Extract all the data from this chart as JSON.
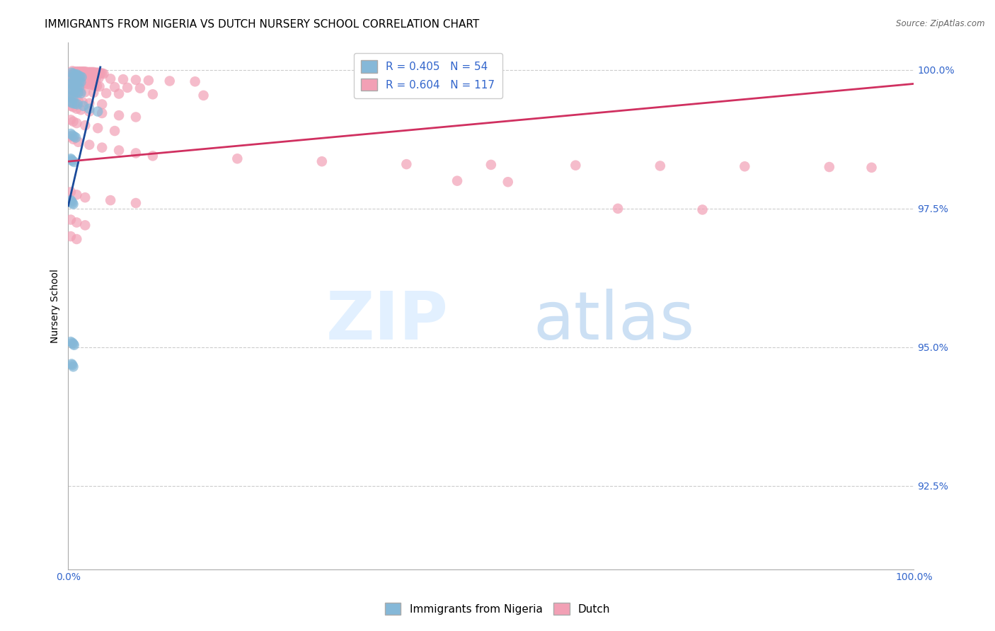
{
  "title": "IMMIGRANTS FROM NIGERIA VS DUTCH NURSERY SCHOOL CORRELATION CHART",
  "source": "Source: ZipAtlas.com",
  "ylabel": "Nursery School",
  "xlim": [
    0.0,
    1.0
  ],
  "ylim": [
    0.91,
    1.005
  ],
  "yticks": [
    0.925,
    0.95,
    0.975,
    1.0
  ],
  "ytick_labels": [
    "92.5%",
    "95.0%",
    "97.5%",
    "100.0%"
  ],
  "legend_r1": "R = 0.405",
  "legend_n1": "N = 54",
  "legend_r2": "R = 0.604",
  "legend_n2": "N = 117",
  "blue_color": "#85B8D8",
  "pink_color": "#F2A0B5",
  "blue_line_color": "#1A4A9A",
  "pink_line_color": "#D03060",
  "legend_text_color": "#3366CC",
  "blue_scatter": [
    [
      0.004,
      0.9995
    ],
    [
      0.006,
      0.9993
    ],
    [
      0.008,
      0.9992
    ],
    [
      0.01,
      0.9992
    ],
    [
      0.012,
      0.999
    ],
    [
      0.014,
      0.9988
    ],
    [
      0.016,
      0.9987
    ],
    [
      0.005,
      0.9985
    ],
    [
      0.007,
      0.9982
    ],
    [
      0.009,
      0.9982
    ],
    [
      0.011,
      0.9981
    ],
    [
      0.013,
      0.9979
    ],
    [
      0.015,
      0.9978
    ],
    [
      0.003,
      0.9975
    ],
    [
      0.005,
      0.9974
    ],
    [
      0.007,
      0.9973
    ],
    [
      0.009,
      0.9972
    ],
    [
      0.011,
      0.997
    ],
    [
      0.013,
      0.9969
    ],
    [
      0.003,
      0.9965
    ],
    [
      0.005,
      0.9963
    ],
    [
      0.007,
      0.9962
    ],
    [
      0.009,
      0.996
    ],
    [
      0.012,
      0.9959
    ],
    [
      0.015,
      0.9958
    ],
    [
      0.002,
      0.9952
    ],
    [
      0.004,
      0.995
    ],
    [
      0.006,
      0.9948
    ],
    [
      0.003,
      0.9942
    ],
    [
      0.005,
      0.994
    ],
    [
      0.008,
      0.9939
    ],
    [
      0.011,
      0.9938
    ],
    [
      0.018,
      0.9935
    ],
    [
      0.025,
      0.993
    ],
    [
      0.035,
      0.9925
    ],
    [
      0.003,
      0.9885
    ],
    [
      0.005,
      0.9882
    ],
    [
      0.007,
      0.988
    ],
    [
      0.009,
      0.9878
    ],
    [
      0.003,
      0.984
    ],
    [
      0.004,
      0.9838
    ],
    [
      0.005,
      0.9836
    ],
    [
      0.007,
      0.9834
    ],
    [
      0.003,
      0.9765
    ],
    [
      0.004,
      0.9763
    ],
    [
      0.005,
      0.976
    ],
    [
      0.006,
      0.9758
    ],
    [
      0.003,
      0.951
    ],
    [
      0.005,
      0.9508
    ],
    [
      0.006,
      0.9506
    ],
    [
      0.007,
      0.9504
    ],
    [
      0.004,
      0.947
    ],
    [
      0.005,
      0.9468
    ],
    [
      0.006,
      0.9465
    ]
  ],
  "pink_scatter": [
    [
      0.005,
      0.9998
    ],
    [
      0.008,
      0.9997
    ],
    [
      0.01,
      0.9997
    ],
    [
      0.012,
      0.9997
    ],
    [
      0.014,
      0.9997
    ],
    [
      0.016,
      0.9997
    ],
    [
      0.018,
      0.9997
    ],
    [
      0.02,
      0.9997
    ],
    [
      0.022,
      0.9996
    ],
    [
      0.024,
      0.9996
    ],
    [
      0.026,
      0.9996
    ],
    [
      0.028,
      0.9996
    ],
    [
      0.03,
      0.9996
    ],
    [
      0.032,
      0.9995
    ],
    [
      0.034,
      0.9995
    ],
    [
      0.036,
      0.9995
    ],
    [
      0.038,
      0.9994
    ],
    [
      0.04,
      0.9994
    ],
    [
      0.042,
      0.9993
    ],
    [
      0.004,
      0.999
    ],
    [
      0.006,
      0.999
    ],
    [
      0.008,
      0.999
    ],
    [
      0.01,
      0.9989
    ],
    [
      0.012,
      0.9989
    ],
    [
      0.015,
      0.9988
    ],
    [
      0.018,
      0.9988
    ],
    [
      0.021,
      0.9987
    ],
    [
      0.024,
      0.9987
    ],
    [
      0.027,
      0.9986
    ],
    [
      0.03,
      0.9986
    ],
    [
      0.033,
      0.9985
    ],
    [
      0.036,
      0.9985
    ],
    [
      0.05,
      0.9984
    ],
    [
      0.065,
      0.9983
    ],
    [
      0.08,
      0.9982
    ],
    [
      0.095,
      0.9981
    ],
    [
      0.12,
      0.998
    ],
    [
      0.15,
      0.9979
    ],
    [
      0.004,
      0.9978
    ],
    [
      0.007,
      0.9978
    ],
    [
      0.01,
      0.9977
    ],
    [
      0.013,
      0.9977
    ],
    [
      0.016,
      0.9976
    ],
    [
      0.019,
      0.9976
    ],
    [
      0.022,
      0.9975
    ],
    [
      0.025,
      0.9974
    ],
    [
      0.028,
      0.9973
    ],
    [
      0.031,
      0.9972
    ],
    [
      0.034,
      0.9971
    ],
    [
      0.037,
      0.997
    ],
    [
      0.055,
      0.9969
    ],
    [
      0.07,
      0.9968
    ],
    [
      0.085,
      0.9967
    ],
    [
      0.003,
      0.9965
    ],
    [
      0.006,
      0.9964
    ],
    [
      0.009,
      0.9963
    ],
    [
      0.012,
      0.9962
    ],
    [
      0.015,
      0.9961
    ],
    [
      0.02,
      0.996
    ],
    [
      0.03,
      0.9959
    ],
    [
      0.045,
      0.9958
    ],
    [
      0.06,
      0.9957
    ],
    [
      0.1,
      0.9956
    ],
    [
      0.16,
      0.9954
    ],
    [
      0.003,
      0.995
    ],
    [
      0.005,
      0.9948
    ],
    [
      0.008,
      0.9946
    ],
    [
      0.012,
      0.9944
    ],
    [
      0.017,
      0.9942
    ],
    [
      0.025,
      0.994
    ],
    [
      0.04,
      0.9938
    ],
    [
      0.003,
      0.9935
    ],
    [
      0.006,
      0.9933
    ],
    [
      0.01,
      0.993
    ],
    [
      0.015,
      0.9928
    ],
    [
      0.025,
      0.9925
    ],
    [
      0.04,
      0.9922
    ],
    [
      0.06,
      0.9918
    ],
    [
      0.08,
      0.9915
    ],
    [
      0.003,
      0.991
    ],
    [
      0.006,
      0.9907
    ],
    [
      0.01,
      0.9904
    ],
    [
      0.02,
      0.99
    ],
    [
      0.035,
      0.9895
    ],
    [
      0.055,
      0.989
    ],
    [
      0.003,
      0.988
    ],
    [
      0.006,
      0.9875
    ],
    [
      0.012,
      0.987
    ],
    [
      0.025,
      0.9865
    ],
    [
      0.04,
      0.986
    ],
    [
      0.06,
      0.9855
    ],
    [
      0.08,
      0.985
    ],
    [
      0.1,
      0.9845
    ],
    [
      0.2,
      0.984
    ],
    [
      0.3,
      0.9835
    ],
    [
      0.4,
      0.983
    ],
    [
      0.5,
      0.9829
    ],
    [
      0.6,
      0.9828
    ],
    [
      0.7,
      0.9827
    ],
    [
      0.8,
      0.9826
    ],
    [
      0.9,
      0.9825
    ],
    [
      0.95,
      0.9824
    ],
    [
      0.46,
      0.98
    ],
    [
      0.52,
      0.9798
    ],
    [
      0.003,
      0.978
    ],
    [
      0.01,
      0.9775
    ],
    [
      0.02,
      0.977
    ],
    [
      0.05,
      0.9765
    ],
    [
      0.08,
      0.976
    ],
    [
      0.65,
      0.975
    ],
    [
      0.75,
      0.9748
    ],
    [
      0.003,
      0.973
    ],
    [
      0.01,
      0.9725
    ],
    [
      0.02,
      0.972
    ],
    [
      0.003,
      0.97
    ],
    [
      0.01,
      0.9695
    ]
  ],
  "blue_trendline": [
    [
      0.0,
      0.9755
    ],
    [
      0.038,
      1.0005
    ]
  ],
  "pink_trendline": [
    [
      0.0,
      0.9835
    ],
    [
      1.0,
      0.9975
    ]
  ],
  "background_color": "#ffffff",
  "grid_color": "#cccccc",
  "title_fontsize": 11,
  "axis_label_fontsize": 10,
  "tick_fontsize": 10,
  "legend_fontsize": 11,
  "marker_size": 110
}
